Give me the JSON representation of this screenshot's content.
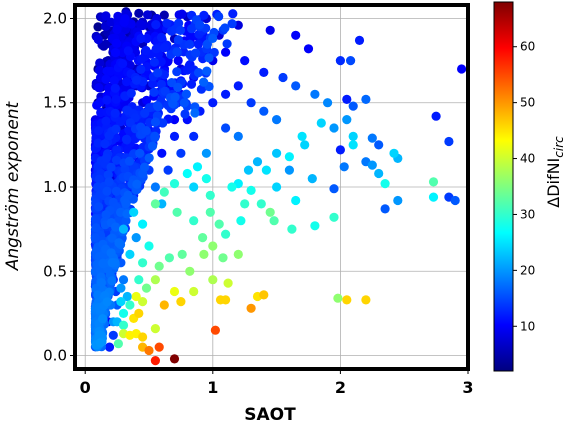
{
  "chart_data": {
    "type": "scatter",
    "xlabel": "SAOT",
    "ylabel": "Angström exponent",
    "colorbar_label": "ΔDifNI",
    "colorbar_label_sub": "circ",
    "xlim": [
      -0.08,
      3.0
    ],
    "ylim": [
      -0.08,
      2.08
    ],
    "x_ticks": [
      0,
      1,
      2,
      3
    ],
    "y_ticks": [
      0.0,
      0.5,
      1.0,
      1.5,
      2.0
    ],
    "x_tick_labels": [
      "0",
      "1",
      "2",
      "3"
    ],
    "y_tick_labels": [
      "0.0",
      "0.5",
      "1.0",
      "1.5",
      "2.0"
    ],
    "color_range": [
      2,
      68
    ],
    "colorbar_ticks": [
      10,
      20,
      30,
      40,
      50,
      60
    ],
    "colorbar_tick_labels": [
      "10",
      "20",
      "30",
      "40",
      "50",
      "60"
    ],
    "colormap": "jet",
    "grid": true,
    "points": [
      [
        0.12,
        2.01,
        6
      ],
      [
        0.32,
        2.04,
        4
      ],
      [
        0.42,
        2.03,
        5
      ],
      [
        0.52,
        2.02,
        4
      ],
      [
        0.62,
        2.02,
        5
      ],
      [
        0.8,
        2.01,
        6
      ],
      [
        0.95,
        2.0,
        7
      ],
      [
        1.2,
        1.96,
        8
      ],
      [
        1.45,
        1.93,
        9
      ],
      [
        1.65,
        1.9,
        10
      ],
      [
        1.75,
        1.82,
        10
      ],
      [
        2.0,
        1.75,
        13
      ],
      [
        2.08,
        1.75,
        15
      ],
      [
        2.15,
        1.87,
        12
      ],
      [
        2.95,
        1.7,
        10
      ],
      [
        1.1,
        1.8,
        10
      ],
      [
        1.25,
        1.75,
        11
      ],
      [
        1.4,
        1.68,
        12
      ],
      [
        1.55,
        1.65,
        14
      ],
      [
        1.65,
        1.6,
        16
      ],
      [
        1.8,
        1.55,
        18
      ],
      [
        1.9,
        1.5,
        19
      ],
      [
        2.05,
        1.52,
        12
      ],
      [
        2.1,
        1.48,
        16
      ],
      [
        2.2,
        1.52,
        17
      ],
      [
        2.05,
        1.4,
        20
      ],
      [
        2.1,
        1.3,
        24
      ],
      [
        2.1,
        1.25,
        25
      ],
      [
        2.03,
        1.12,
        18
      ],
      [
        2.0,
        1.22,
        12
      ],
      [
        1.95,
        1.35,
        20
      ],
      [
        1.85,
        1.38,
        24
      ],
      [
        1.7,
        1.3,
        25
      ],
      [
        1.72,
        1.25,
        24
      ],
      [
        1.6,
        1.18,
        26
      ],
      [
        1.5,
        1.2,
        23
      ],
      [
        1.42,
        1.1,
        25
      ],
      [
        1.35,
        1.15,
        22
      ],
      [
        1.28,
        1.1,
        23
      ],
      [
        1.2,
        1.02,
        26
      ],
      [
        1.15,
        1.0,
        28
      ],
      [
        1.3,
        0.98,
        28
      ],
      [
        1.38,
        0.9,
        30
      ],
      [
        1.45,
        0.85,
        34
      ],
      [
        1.48,
        0.8,
        32
      ],
      [
        1.25,
        0.9,
        30
      ],
      [
        1.22,
        0.8,
        28
      ],
      [
        1.1,
        0.72,
        30
      ],
      [
        1.05,
        0.78,
        32
      ],
      [
        0.98,
        0.95,
        30
      ],
      [
        0.95,
        1.05,
        28
      ],
      [
        0.88,
        1.12,
        26
      ],
      [
        0.8,
        1.08,
        27
      ],
      [
        0.7,
        1.02,
        29
      ],
      [
        0.62,
        0.97,
        31
      ],
      [
        0.55,
        0.9,
        33
      ],
      [
        0.72,
        0.85,
        32
      ],
      [
        0.85,
        0.8,
        30
      ],
      [
        0.92,
        0.7,
        33
      ],
      [
        1.0,
        0.65,
        36
      ],
      [
        1.08,
        0.58,
        34
      ],
      [
        1.2,
        0.6,
        36
      ],
      [
        1.12,
        0.43,
        40
      ],
      [
        1.06,
        0.33,
        46
      ],
      [
        1.1,
        0.33,
        46
      ],
      [
        1.35,
        0.35,
        45
      ],
      [
        1.4,
        0.36,
        47
      ],
      [
        1.3,
        0.28,
        50
      ],
      [
        1.02,
        0.15,
        55
      ],
      [
        1.0,
        0.45,
        38
      ],
      [
        0.85,
        0.38,
        40
      ],
      [
        0.82,
        0.5,
        36
      ],
      [
        0.76,
        0.6,
        33
      ],
      [
        0.66,
        0.58,
        32
      ],
      [
        0.58,
        0.53,
        34
      ],
      [
        0.55,
        0.45,
        38
      ],
      [
        0.45,
        0.55,
        30
      ],
      [
        0.5,
        0.65,
        28
      ],
      [
        0.45,
        0.78,
        26
      ],
      [
        0.38,
        0.85,
        24
      ],
      [
        0.3,
        0.75,
        22
      ],
      [
        0.4,
        0.35,
        42
      ],
      [
        0.42,
        0.25,
        46
      ],
      [
        0.38,
        0.22,
        45
      ],
      [
        0.45,
        0.32,
        40
      ],
      [
        0.7,
        0.38,
        42
      ],
      [
        0.75,
        0.32,
        46
      ],
      [
        0.62,
        0.3,
        48
      ],
      [
        0.55,
        0.16,
        40
      ],
      [
        0.58,
        0.05,
        55
      ],
      [
        0.5,
        0.03,
        52
      ],
      [
        0.45,
        0.05,
        48
      ],
      [
        0.55,
        -0.03,
        58
      ],
      [
        0.7,
        -0.02,
        68
      ],
      [
        0.45,
        0.11,
        46
      ],
      [
        0.4,
        0.13,
        44
      ],
      [
        0.35,
        0.12,
        44
      ],
      [
        0.3,
        0.13,
        40
      ],
      [
        0.26,
        0.07,
        32
      ],
      [
        0.22,
        0.2,
        20
      ],
      [
        0.2,
        0.3,
        18
      ],
      [
        0.19,
        0.05,
        12
      ],
      [
        0.22,
        0.12,
        14
      ],
      [
        1.98,
        0.34,
        36
      ],
      [
        2.05,
        0.33,
        46
      ],
      [
        2.2,
        0.33,
        46
      ],
      [
        2.73,
        1.03,
        32
      ],
      [
        2.73,
        0.94,
        26
      ],
      [
        2.85,
        0.94,
        14
      ],
      [
        2.9,
        0.92,
        16
      ],
      [
        2.45,
        0.92,
        20
      ],
      [
        2.35,
        0.87,
        16
      ],
      [
        2.35,
        1.02,
        28
      ],
      [
        2.3,
        1.08,
        22
      ],
      [
        2.25,
        1.13,
        20
      ],
      [
        2.42,
        1.2,
        24
      ],
      [
        2.45,
        1.17,
        22
      ],
      [
        2.2,
        1.15,
        18
      ],
      [
        2.3,
        1.25,
        16
      ],
      [
        2.25,
        1.29,
        18
      ],
      [
        2.85,
        1.27,
        14
      ],
      [
        2.75,
        1.42,
        12
      ],
      [
        1.95,
        0.82,
        30
      ],
      [
        1.8,
        0.77,
        28
      ],
      [
        1.62,
        0.75,
        30
      ],
      [
        1.65,
        0.92,
        26
      ],
      [
        1.95,
        0.99,
        16
      ],
      [
        1.78,
        1.05,
        22
      ],
      [
        1.6,
        1.1,
        20
      ],
      [
        1.5,
        1.0,
        24
      ],
      [
        0.98,
        0.85,
        32
      ],
      [
        0.93,
        0.6,
        36
      ],
      [
        0.1,
        1.95,
        3
      ],
      [
        0.15,
        1.9,
        4
      ],
      [
        0.2,
        1.85,
        4
      ],
      [
        0.25,
        1.8,
        5
      ],
      [
        0.3,
        1.75,
        5
      ],
      [
        0.1,
        1.7,
        3
      ],
      [
        0.12,
        1.6,
        4
      ],
      [
        0.1,
        1.5,
        3
      ],
      [
        0.12,
        1.4,
        4
      ],
      [
        0.1,
        1.3,
        3
      ],
      [
        0.12,
        1.2,
        4
      ],
      [
        0.1,
        1.1,
        4
      ],
      [
        0.12,
        1.0,
        5
      ],
      [
        0.1,
        0.9,
        4
      ],
      [
        0.12,
        0.8,
        5
      ],
      [
        0.1,
        0.7,
        4
      ],
      [
        0.12,
        0.6,
        6
      ],
      [
        0.1,
        0.5,
        5
      ],
      [
        0.12,
        0.45,
        5
      ],
      [
        0.13,
        0.38,
        6
      ],
      [
        0.15,
        0.3,
        7
      ],
      [
        0.16,
        0.25,
        8
      ],
      [
        0.18,
        0.2,
        10
      ],
      [
        0.2,
        1.65,
        5
      ],
      [
        0.22,
        1.55,
        6
      ],
      [
        0.25,
        1.45,
        6
      ],
      [
        0.28,
        1.35,
        7
      ],
      [
        0.3,
        1.25,
        8
      ],
      [
        0.32,
        1.15,
        8
      ],
      [
        0.35,
        1.05,
        9
      ],
      [
        0.38,
        0.95,
        12
      ],
      [
        0.4,
        1.6,
        7
      ],
      [
        0.45,
        1.5,
        8
      ],
      [
        0.5,
        1.4,
        9
      ],
      [
        0.55,
        1.3,
        10
      ],
      [
        0.6,
        1.2,
        11
      ],
      [
        0.65,
        1.1,
        14
      ],
      [
        0.35,
        1.9,
        5
      ],
      [
        0.45,
        1.85,
        6
      ],
      [
        0.55,
        1.8,
        6
      ],
      [
        0.65,
        1.75,
        7
      ],
      [
        0.75,
        1.7,
        8
      ],
      [
        0.85,
        1.65,
        9
      ],
      [
        0.95,
        1.6,
        10
      ],
      [
        0.5,
        1.95,
        5
      ],
      [
        0.6,
        1.92,
        5
      ],
      [
        0.7,
        1.88,
        6
      ],
      [
        0.8,
        1.85,
        7
      ],
      [
        0.9,
        1.8,
        8
      ],
      [
        1.0,
        1.75,
        9
      ],
      [
        1.05,
        1.9,
        8
      ],
      [
        0.25,
        0.65,
        14
      ],
      [
        0.28,
        0.55,
        16
      ],
      [
        0.3,
        0.45,
        18
      ],
      [
        0.33,
        0.35,
        22
      ],
      [
        0.35,
        0.3,
        30
      ],
      [
        0.3,
        0.25,
        28
      ],
      [
        0.2,
        0.55,
        10
      ],
      [
        0.22,
        0.45,
        12
      ],
      [
        0.24,
        0.38,
        14
      ],
      [
        0.18,
        0.85,
        7
      ],
      [
        0.2,
        0.95,
        7
      ],
      [
        0.22,
        1.05,
        8
      ],
      [
        0.25,
        1.15,
        8
      ],
      [
        0.45,
        1.2,
        12
      ],
      [
        0.5,
        1.1,
        14
      ],
      [
        0.55,
        1.0,
        18
      ],
      [
        0.6,
        0.9,
        22
      ],
      [
        0.7,
        1.3,
        12
      ],
      [
        0.75,
        1.2,
        14
      ],
      [
        0.8,
        1.4,
        11
      ],
      [
        0.85,
        1.3,
        13
      ],
      [
        0.9,
        1.45,
        12
      ],
      [
        1.0,
        1.5,
        12
      ],
      [
        1.1,
        1.55,
        12
      ],
      [
        1.2,
        1.6,
        12
      ],
      [
        1.3,
        1.5,
        14
      ],
      [
        1.4,
        1.45,
        16
      ],
      [
        1.5,
        1.4,
        18
      ],
      [
        1.1,
        1.35,
        15
      ],
      [
        1.2,
        1.3,
        18
      ],
      [
        0.95,
        1.2,
        20
      ],
      [
        0.85,
        1.0,
        24
      ],
      [
        0.4,
        0.7,
        20
      ],
      [
        0.35,
        0.6,
        24
      ],
      [
        0.42,
        0.45,
        30
      ],
      [
        0.48,
        0.4,
        34
      ],
      [
        0.28,
        0.4,
        20
      ],
      [
        0.25,
        0.3,
        16
      ],
      [
        0.18,
        0.4,
        9
      ],
      [
        0.15,
        0.65,
        6
      ],
      [
        0.15,
        1.1,
        5
      ],
      [
        0.15,
        1.45,
        4
      ],
      [
        0.18,
        1.75,
        4
      ],
      [
        0.28,
        1.95,
        4
      ],
      [
        0.38,
        1.98,
        4
      ],
      [
        0.15,
        2.0,
        5
      ],
      [
        0.65,
        1.6,
        8
      ],
      [
        0.75,
        1.55,
        9
      ],
      [
        0.7,
        1.4,
        10
      ],
      [
        0.6,
        1.5,
        8
      ],
      [
        0.5,
        1.6,
        7
      ],
      [
        0.4,
        1.7,
        6
      ],
      [
        0.3,
        1.6,
        6
      ],
      [
        0.35,
        1.4,
        8
      ],
      [
        0.4,
        1.3,
        9
      ],
      [
        0.42,
        1.15,
        10
      ],
      [
        0.3,
        1.0,
        10
      ],
      [
        0.28,
        0.9,
        12
      ],
      [
        0.32,
        0.8,
        16
      ],
      [
        0.2,
        0.75,
        8
      ],
      [
        0.25,
        0.2,
        22
      ],
      [
        0.3,
        0.18,
        30
      ],
      [
        0.28,
        0.32,
        24
      ]
    ]
  }
}
